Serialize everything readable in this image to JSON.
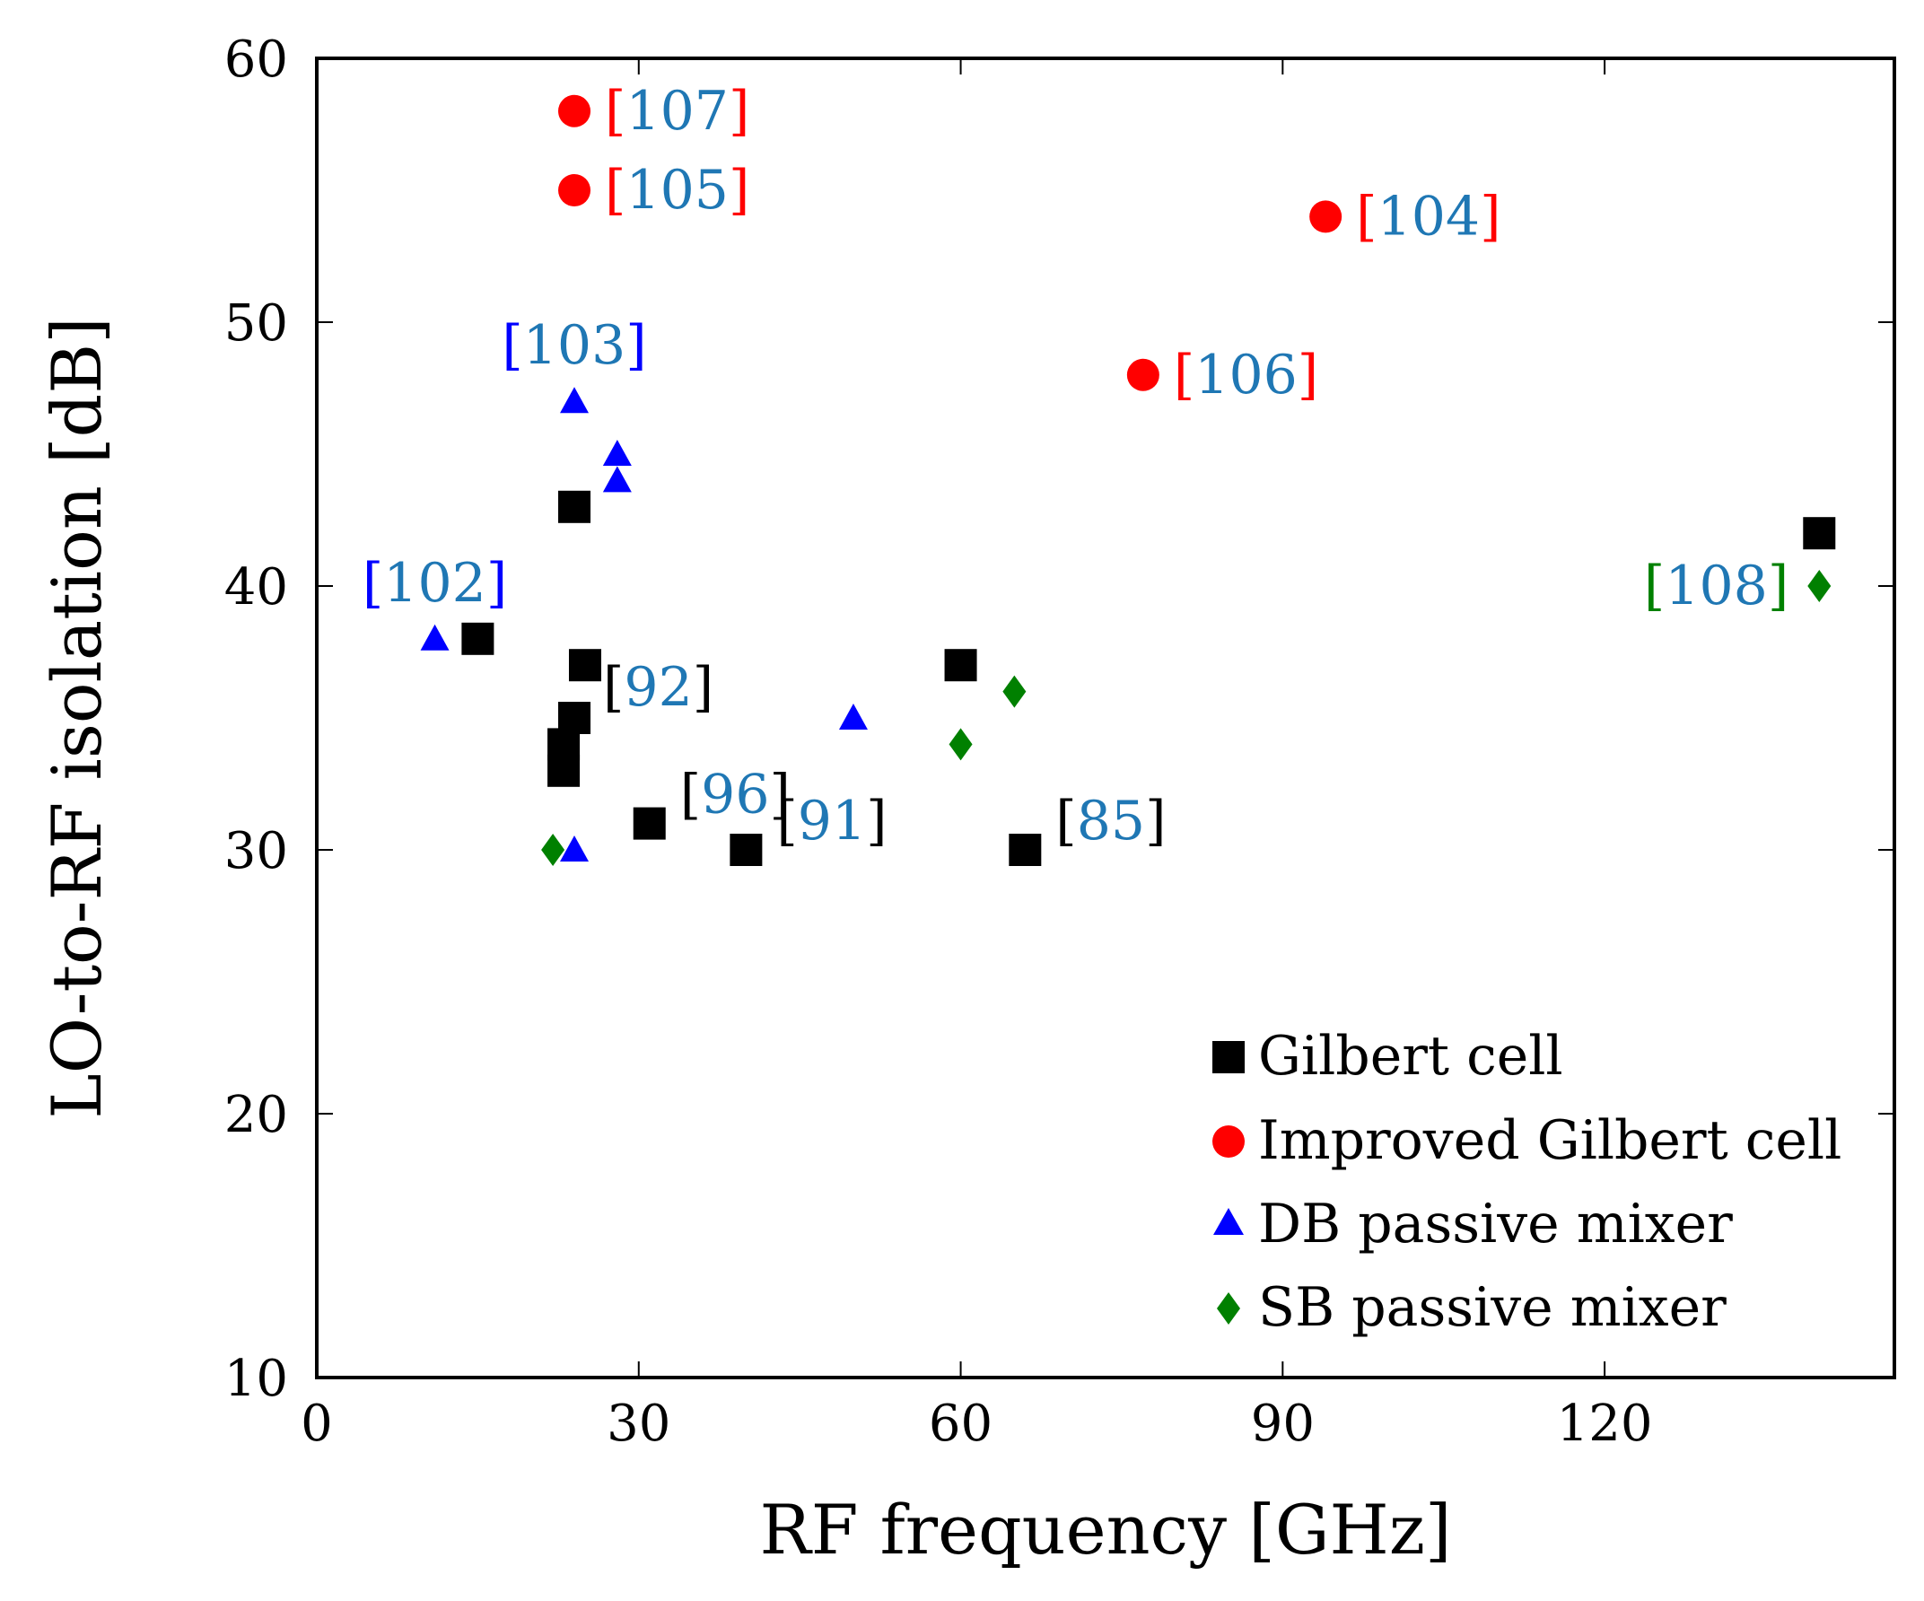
{
  "chart_data": {
    "type": "scatter",
    "title": "",
    "xlabel": "RF frequency [GHz]",
    "ylabel": "LO-to-RF isolation [dB]",
    "xlim": [
      0,
      147
    ],
    "ylim": [
      10,
      60
    ],
    "xticks": [
      0,
      30,
      60,
      90,
      120
    ],
    "yticks": [
      10,
      20,
      30,
      40,
      50,
      60
    ],
    "grid": false,
    "legend_position": "bottom-right",
    "colors": {
      "gilbert": "#000000",
      "improved": "#ff0000",
      "db": "#0000ff",
      "sb": "#008000",
      "ref_number": "#1f77b4"
    },
    "series": [
      {
        "name": "Gilbert cell",
        "marker": "square",
        "color": "#000000",
        "points": [
          {
            "x": 24,
            "y": 43
          },
          {
            "x": 15,
            "y": 38
          },
          {
            "x": 25,
            "y": 37
          },
          {
            "x": 24,
            "y": 35
          },
          {
            "x": 23,
            "y": 34
          },
          {
            "x": 23,
            "y": 33
          },
          {
            "x": 31,
            "y": 31
          },
          {
            "x": 40,
            "y": 30
          },
          {
            "x": 60,
            "y": 37
          },
          {
            "x": 66,
            "y": 30
          },
          {
            "x": 140,
            "y": 42
          }
        ]
      },
      {
        "name": "Improved Gilbert cell",
        "marker": "circle",
        "color": "#ff0000",
        "points": [
          {
            "x": 24,
            "y": 58
          },
          {
            "x": 24,
            "y": 55
          },
          {
            "x": 94,
            "y": 54
          },
          {
            "x": 77,
            "y": 48
          }
        ]
      },
      {
        "name": "DB passive mixer",
        "marker": "triangle",
        "color": "#0000ff",
        "points": [
          {
            "x": 24,
            "y": 47
          },
          {
            "x": 28,
            "y": 45
          },
          {
            "x": 28,
            "y": 44
          },
          {
            "x": 11,
            "y": 38
          },
          {
            "x": 50,
            "y": 35
          },
          {
            "x": 24,
            "y": 30
          }
        ]
      },
      {
        "name": "SB passive mixer",
        "marker": "diamond",
        "color": "#008000",
        "points": [
          {
            "x": 22,
            "y": 30
          },
          {
            "x": 60,
            "y": 34
          },
          {
            "x": 65,
            "y": 36
          },
          {
            "x": 140,
            "y": 40
          }
        ]
      }
    ],
    "annotations": [
      {
        "ref": "107",
        "x": 24,
        "y": 58,
        "pos": "right",
        "bracket_color": "#ff0000"
      },
      {
        "ref": "105",
        "x": 24,
        "y": 55,
        "pos": "right",
        "bracket_color": "#ff0000"
      },
      {
        "ref": "104",
        "x": 94,
        "y": 54,
        "pos": "right",
        "bracket_color": "#ff0000"
      },
      {
        "ref": "106",
        "x": 77,
        "y": 48,
        "pos": "right",
        "bracket_color": "#ff0000"
      },
      {
        "ref": "103",
        "x": 24,
        "y": 47,
        "pos": "above",
        "bracket_color": "#0000ff"
      },
      {
        "ref": "102",
        "x": 11,
        "y": 38,
        "pos": "above",
        "bracket_color": "#0000ff"
      },
      {
        "ref": "92",
        "x": 25,
        "y": 37,
        "pos": "below-right",
        "bracket_color": "#000000"
      },
      {
        "ref": "96",
        "x": 31,
        "y": 31,
        "pos": "above-right",
        "bracket_color": "#000000"
      },
      {
        "ref": "91",
        "x": 40,
        "y": 30,
        "pos": "above-right",
        "bracket_color": "#000000"
      },
      {
        "ref": "85",
        "x": 66,
        "y": 30,
        "pos": "above-right",
        "bracket_color": "#000000"
      },
      {
        "ref": "108",
        "x": 140,
        "y": 40,
        "pos": "left",
        "bracket_color": "#008000"
      }
    ]
  }
}
